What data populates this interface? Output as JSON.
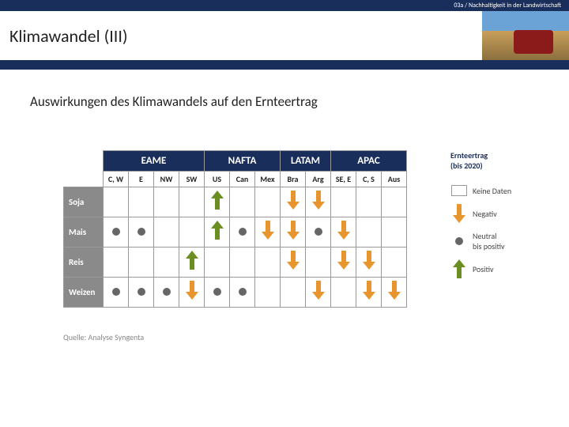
{
  "header": {
    "breadcrumb": "03a / Nachhaltigkeit in der Landwirtschaft",
    "title": "Klimawandel (III)",
    "subtitle": "Auswirkungen des Klimawandels auf den Ernteertrag"
  },
  "colors": {
    "header_bg": "#1a2e5c",
    "row_label_bg": "#8a8a8a",
    "positive": "#6b8e23",
    "negative": "#e8952e",
    "neutral": "#666666"
  },
  "table": {
    "regions": [
      {
        "label": "EAME",
        "subs": [
          "C, W",
          "E",
          "NW",
          "SW"
        ]
      },
      {
        "label": "NAFTA",
        "subs": [
          "US",
          "Can",
          "Mex"
        ]
      },
      {
        "label": "LATAM",
        "subs": [
          "Bra",
          "Arg"
        ]
      },
      {
        "label": "APAC",
        "subs": [
          "SE, E",
          "C, S",
          "Aus"
        ]
      }
    ],
    "rows": [
      {
        "label": "Soja",
        "cells": [
          "",
          "",
          "",
          "",
          "up",
          "",
          "",
          "down",
          "down",
          "",
          "",
          ""
        ]
      },
      {
        "label": "Mais",
        "cells": [
          "dot",
          "dot",
          "",
          "",
          "up",
          "dot",
          "down",
          "down",
          "dot",
          "down",
          "",
          ""
        ]
      },
      {
        "label": "Reis",
        "cells": [
          "",
          "",
          "",
          "up",
          "",
          "",
          "",
          "down",
          "",
          "down",
          "down",
          ""
        ]
      },
      {
        "label": "Weizen",
        "cells": [
          "dot",
          "dot",
          "dot",
          "down",
          "dot",
          "dot",
          "",
          "",
          "down",
          "",
          "down",
          "down"
        ]
      }
    ]
  },
  "legend": {
    "title_line1": "Ernteertrag",
    "title_line2": "(bis 2020)",
    "items": [
      {
        "type": "box",
        "label": "Keine Daten"
      },
      {
        "type": "down",
        "label": "Negativ"
      },
      {
        "type": "dot",
        "label_line1": "Neutral",
        "label_line2": "bis positiv"
      },
      {
        "type": "up",
        "label": "Positiv"
      }
    ]
  },
  "source": "Quelle: Analyse Syngenta"
}
